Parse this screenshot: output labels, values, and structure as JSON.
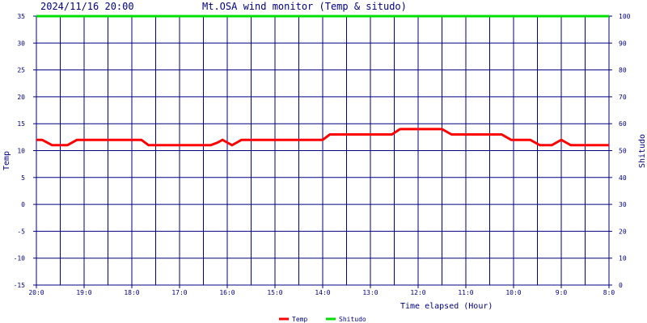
{
  "chart_data": {
    "type": "line",
    "timestamp": "2024/11/16 20:00",
    "title": "Mt.OSA wind monitor (Temp & situdo)",
    "xlabel": "Time elapsed (Hour)",
    "ylabel_left": "Temp",
    "ylabel_right": "Shitudo",
    "ylim_left": [
      -15,
      35
    ],
    "ylim_right": [
      0,
      100
    ],
    "y_ticks_left": [
      -15,
      -10,
      -5,
      0,
      5,
      10,
      15,
      20,
      25,
      30,
      35
    ],
    "y_ticks_right": [
      0,
      10,
      20,
      30,
      40,
      50,
      60,
      70,
      80,
      90,
      100
    ],
    "x_hours_range": [
      0,
      12
    ],
    "x_ticks": [
      {
        "label": "20:0",
        "h": 0
      },
      {
        "label": "19:0",
        "h": 1
      },
      {
        "label": "18:0",
        "h": 2
      },
      {
        "label": "17:0",
        "h": 3
      },
      {
        "label": "16:0",
        "h": 4
      },
      {
        "label": "15:0",
        "h": 5
      },
      {
        "label": "14:0",
        "h": 6
      },
      {
        "label": "13:0",
        "h": 7
      },
      {
        "label": "12:0",
        "h": 8
      },
      {
        "label": "11:0",
        "h": 9
      },
      {
        "label": "10:0",
        "h": 10
      },
      {
        "label": "9:0",
        "h": 11
      },
      {
        "label": "8:0",
        "h": 12
      }
    ],
    "grid": true,
    "legend_position": "bottom-center",
    "series": [
      {
        "name": "Temp",
        "axis": "left",
        "color": "#ff0000",
        "points": [
          [
            0.0,
            12
          ],
          [
            0.12,
            12
          ],
          [
            0.33,
            11
          ],
          [
            0.65,
            11
          ],
          [
            0.85,
            12
          ],
          [
            2.2,
            12
          ],
          [
            2.35,
            11
          ],
          [
            3.65,
            11
          ],
          [
            3.8,
            11.5
          ],
          [
            3.9,
            12
          ],
          [
            4.0,
            11.5
          ],
          [
            4.1,
            11
          ],
          [
            4.2,
            11.5
          ],
          [
            4.3,
            12
          ],
          [
            6.0,
            12
          ],
          [
            6.15,
            13
          ],
          [
            7.45,
            13
          ],
          [
            7.62,
            14
          ],
          [
            8.5,
            14
          ],
          [
            8.7,
            13
          ],
          [
            9.75,
            13
          ],
          [
            9.95,
            12
          ],
          [
            10.35,
            12
          ],
          [
            10.55,
            11
          ],
          [
            10.8,
            11
          ],
          [
            10.9,
            11.5
          ],
          [
            11.0,
            12
          ],
          [
            11.1,
            11.5
          ],
          [
            11.2,
            11
          ],
          [
            12.0,
            11
          ]
        ]
      },
      {
        "name": "Shitudo",
        "axis": "right",
        "color": "#00e000",
        "points": [
          [
            0,
            100
          ],
          [
            12,
            100
          ]
        ]
      }
    ]
  }
}
